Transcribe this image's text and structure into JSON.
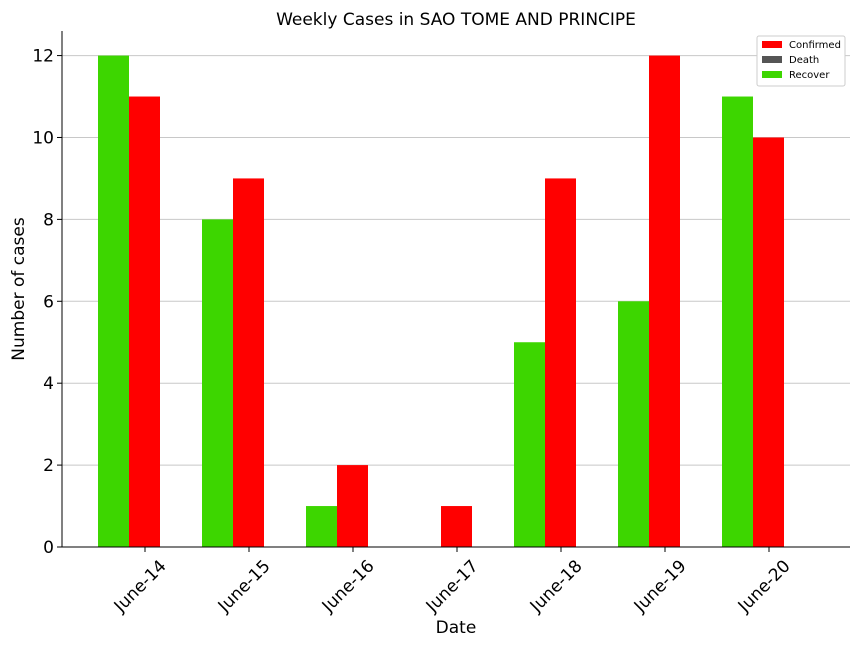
{
  "chart_data": {
    "type": "bar",
    "title": "Weekly Cases in SAO TOME AND PRINCIPE",
    "xlabel": "Date",
    "ylabel": "Number of cases",
    "categories": [
      "June-14",
      "June-15",
      "June-16",
      "June-17",
      "June-18",
      "June-19",
      "June-20"
    ],
    "series": [
      {
        "name": "Confirmed",
        "color": "#ff0000",
        "values": [
          11,
          9,
          2,
          1,
          9,
          12,
          10
        ]
      },
      {
        "name": "Death",
        "color": "#555555",
        "values": [
          0,
          0,
          0,
          0,
          0,
          0,
          0
        ]
      },
      {
        "name": "Recover",
        "color": "#3dd600",
        "values": [
          12,
          8,
          1,
          0,
          5,
          6,
          11
        ]
      }
    ],
    "ylim": [
      0,
      12.6
    ],
    "yticks": [
      0,
      2,
      4,
      6,
      8,
      10,
      12
    ],
    "grid": "horizontal",
    "legend_position": "top-right"
  }
}
